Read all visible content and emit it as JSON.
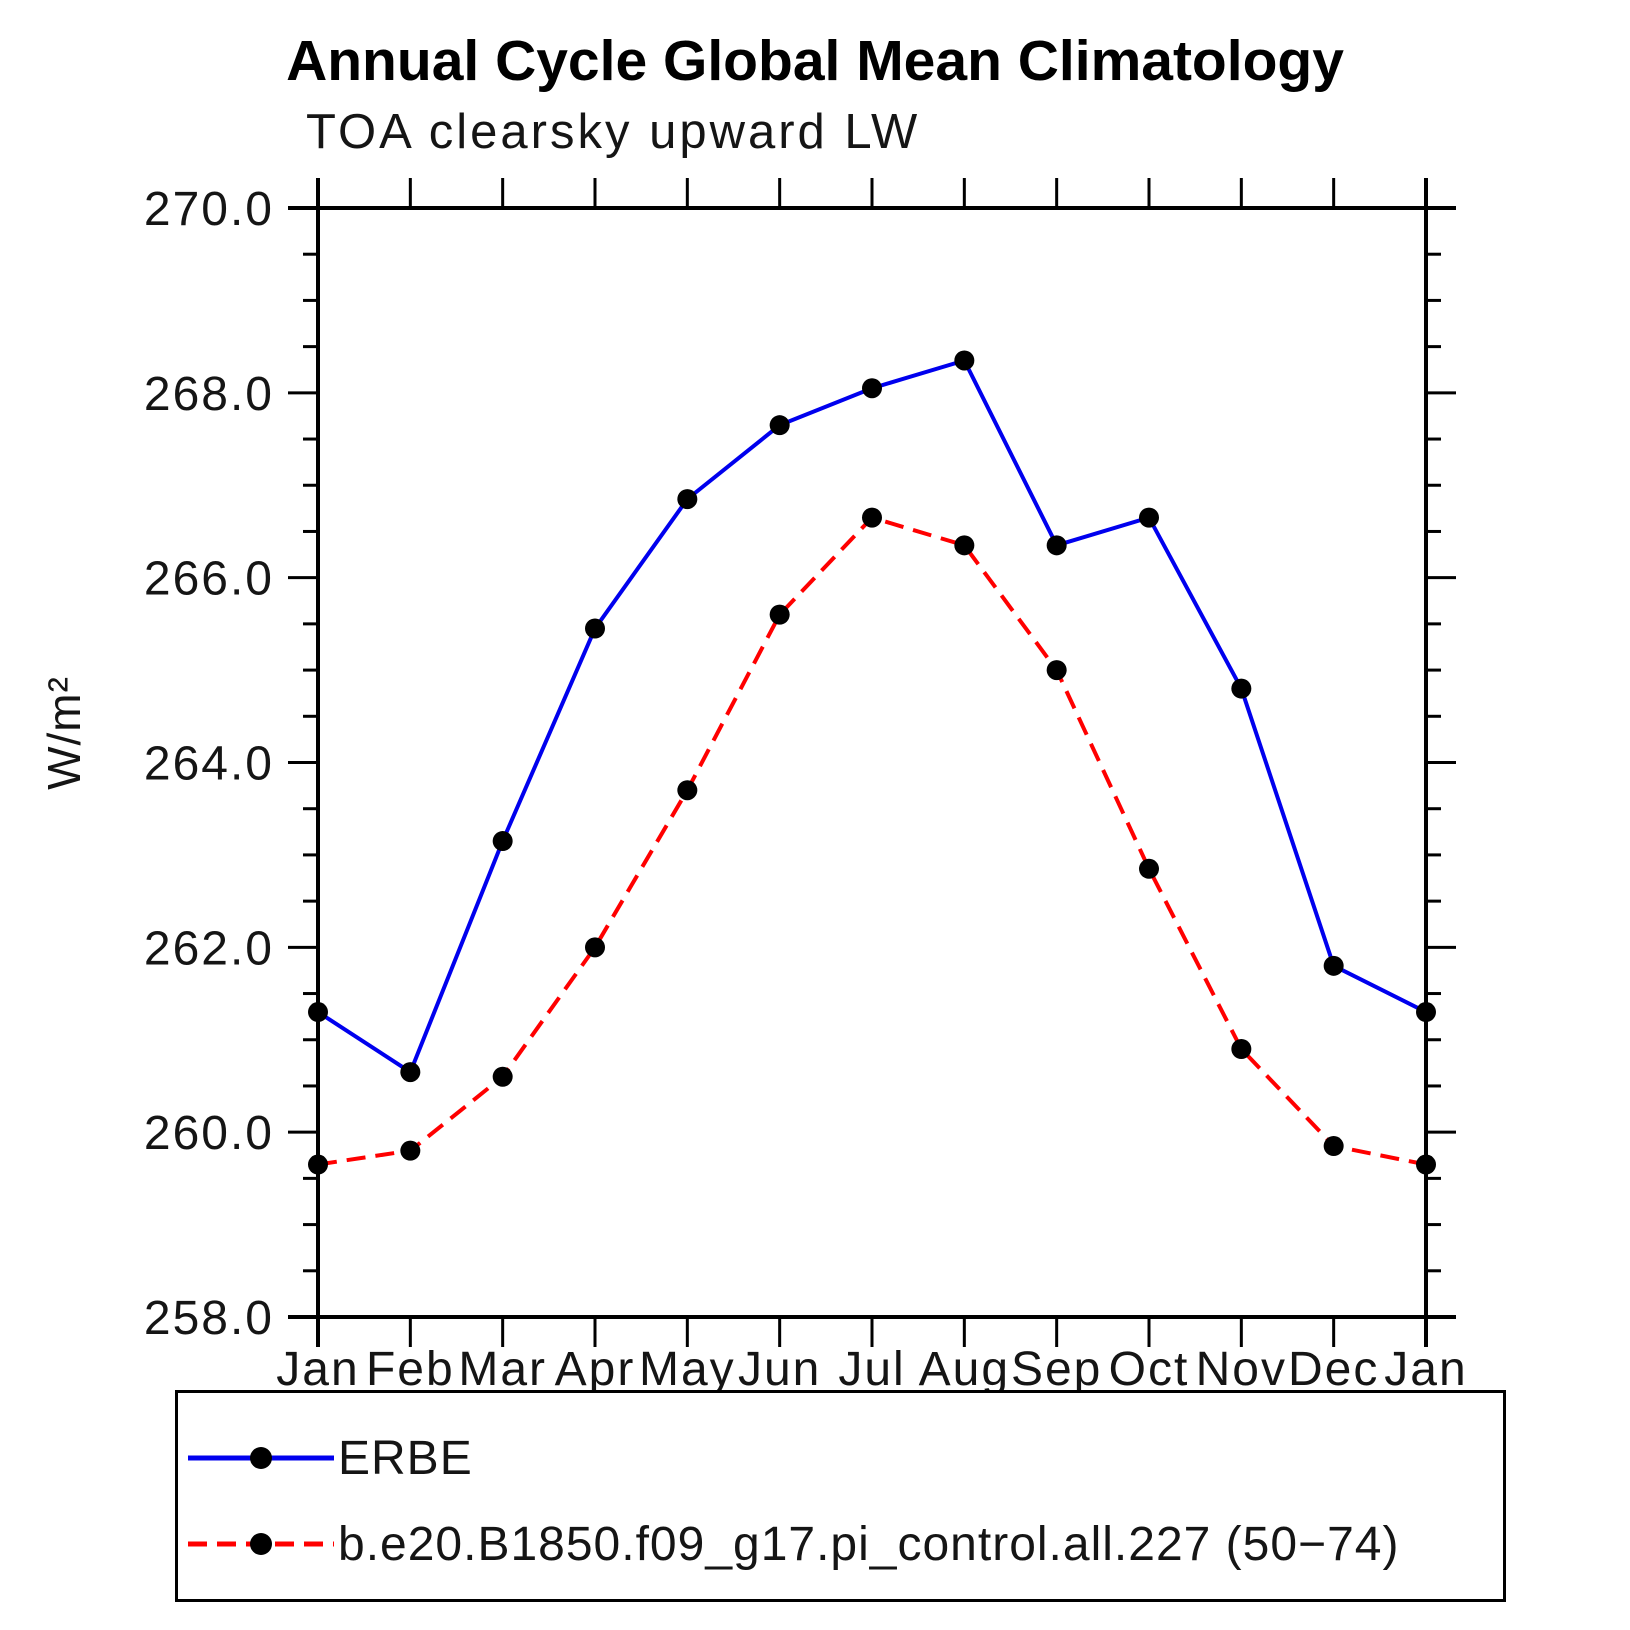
{
  "header": {
    "title": "Annual Cycle Global Mean Climatology",
    "subtitle": "TOA clearsky upward LW"
  },
  "chart_data": {
    "type": "line",
    "title": "Annual Cycle Global Mean Climatology",
    "subtitle": "TOA clearsky upward LW",
    "xlabel": "",
    "ylabel": "W/m²",
    "categories": [
      "Jan",
      "Feb",
      "Mar",
      "Apr",
      "May",
      "Jun",
      "Jul",
      "Aug",
      "Sep",
      "Oct",
      "Nov",
      "Dec",
      "Jan"
    ],
    "ylim": [
      258.0,
      270.0
    ],
    "y_major_step": 2.0,
    "y_minor_step": 0.5,
    "y_tick_labels": [
      "258.0",
      "260.0",
      "262.0",
      "264.0",
      "266.0",
      "268.0",
      "270.0"
    ],
    "grid": false,
    "legend_position": "bottom",
    "axis_color": "#000000",
    "marker_color": "#000000",
    "series": [
      {
        "name": "ERBE",
        "color": "#0000ee",
        "style": "solid",
        "marker": "circle",
        "values": [
          261.3,
          260.65,
          263.15,
          265.45,
          266.85,
          267.65,
          268.05,
          268.35,
          266.35,
          266.65,
          264.8,
          261.8,
          261.3
        ]
      },
      {
        "name": "b.e20.B1850.f09_g17.pi_control.all.227 (50−74)",
        "color": "#ff0000",
        "style": "dashed",
        "marker": "circle",
        "values": [
          259.65,
          259.8,
          260.6,
          262.0,
          263.7,
          265.6,
          266.65,
          266.35,
          265.0,
          262.85,
          260.9,
          259.85,
          259.65
        ]
      }
    ]
  }
}
